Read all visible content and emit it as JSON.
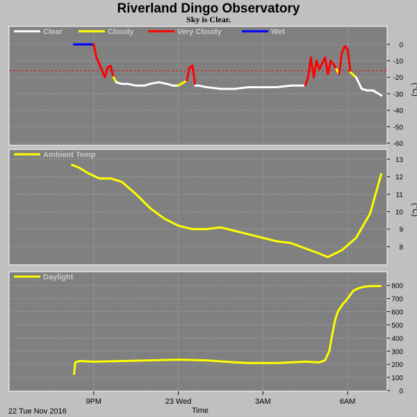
{
  "title": "Riverland Dingo Observatory",
  "subtitle": "Sky is Clear.",
  "footer": {
    "date": "22 Tue Nov 2016",
    "time_label": "Time"
  },
  "x_ticks": [
    "9PM",
    "23 Wed",
    "3AM",
    "6AM"
  ],
  "colors": {
    "clear": "#ffffff",
    "cloudy": "#ffff00",
    "very_cloudy": "#ff0000",
    "wet": "#0000ff",
    "threshold": "#ff0000",
    "panel": "#808080",
    "grid": "#b0b0b0"
  },
  "chart_data": [
    {
      "type": "line",
      "name": "sky",
      "legend": [
        "Clear",
        "Cloudy",
        "Very Cloudy",
        "Wet"
      ],
      "ylabel": "(°C)",
      "ylim": [
        -60,
        5
      ],
      "yticks": [
        0,
        -10,
        -20,
        -30,
        -40,
        -50,
        -60
      ],
      "threshold": -16,
      "x_hours": [
        20.3,
        20.5,
        21.0,
        21.1,
        21.2,
        21.3,
        21.4,
        21.5,
        21.6,
        21.7,
        21.8,
        22.0,
        22.2,
        22.5,
        22.8,
        23.0,
        23.3,
        23.6,
        23.8,
        24.0,
        24.3,
        24.4,
        24.5,
        24.6,
        24.7,
        25.0,
        25.5,
        26.0,
        26.5,
        27.0,
        27.5,
        28.0,
        28.5,
        28.6,
        28.7,
        28.8,
        28.9,
        29.0,
        29.2,
        29.3,
        29.4,
        29.5,
        29.6,
        29.7,
        29.8,
        29.9,
        30.0,
        30.1,
        30.3,
        30.5,
        30.7,
        30.9,
        31.0,
        31.2
      ],
      "values": [
        0,
        0,
        0,
        -8,
        -12,
        -16,
        -20,
        -14,
        -13,
        -20,
        -23,
        -24,
        -24,
        -25,
        -25,
        -24,
        -23,
        -24,
        -25,
        -25,
        -22,
        -14,
        -13,
        -25,
        -25,
        -26,
        -27,
        -27,
        -26,
        -26,
        -26,
        -25,
        -25,
        -20,
        -8,
        -20,
        -10,
        -15,
        -8,
        -18,
        -10,
        -12,
        -15,
        -18,
        -5,
        -1,
        -3,
        -17,
        -20,
        -27,
        -28,
        -28,
        -29,
        -31
      ],
      "states": [
        "wet",
        "wet",
        "wet",
        "very_cloudy",
        "very_cloudy",
        "very_cloudy",
        "very_cloudy",
        "very_cloudy",
        "very_cloudy",
        "very_cloudy",
        "cloudy",
        "clear",
        "clear",
        "clear",
        "clear",
        "clear",
        "clear",
        "clear",
        "clear",
        "clear",
        "cloudy",
        "very_cloudy",
        "very_cloudy",
        "very_cloudy",
        "clear",
        "clear",
        "clear",
        "clear",
        "clear",
        "clear",
        "clear",
        "clear",
        "clear",
        "very_cloudy",
        "very_cloudy",
        "very_cloudy",
        "very_cloudy",
        "very_cloudy",
        "very_cloudy",
        "very_cloudy",
        "very_cloudy",
        "very_cloudy",
        "very_cloudy",
        "cloudy",
        "very_cloudy",
        "very_cloudy",
        "very_cloudy",
        "very_cloudy",
        "cloudy",
        "clear",
        "clear",
        "clear",
        "clear",
        "clear"
      ]
    },
    {
      "type": "line",
      "name": "ambient",
      "legend": [
        "Ambient Temp"
      ],
      "ylabel": "(°C)",
      "ylim": [
        7,
        13.2
      ],
      "yticks": [
        8,
        9,
        10,
        11,
        12,
        13
      ],
      "x_hours": [
        20.2,
        20.5,
        20.8,
        21.2,
        21.6,
        22.0,
        22.5,
        23.0,
        23.5,
        24.0,
        24.5,
        25.0,
        25.5,
        26.0,
        26.5,
        27.0,
        27.5,
        28.0,
        28.5,
        29.0,
        29.3,
        29.8,
        30.3,
        30.8,
        31.2
      ],
      "values": [
        12.7,
        12.5,
        12.2,
        11.9,
        11.9,
        11.7,
        11.0,
        10.2,
        9.6,
        9.2,
        9.0,
        9.0,
        9.1,
        8.9,
        8.7,
        8.5,
        8.3,
        8.2,
        7.9,
        7.6,
        7.4,
        7.8,
        8.5,
        9.9,
        12.2
      ]
    },
    {
      "type": "line",
      "name": "daylight",
      "legend": [
        "Daylight"
      ],
      "ylabel": "",
      "ylim": [
        0,
        830
      ],
      "yticks": [
        0,
        100,
        200,
        300,
        400,
        500,
        600,
        700,
        800
      ],
      "x_hours": [
        20.3,
        20.35,
        20.5,
        21.0,
        22.0,
        23.0,
        24.0,
        25.0,
        26.0,
        26.5,
        27.0,
        27.5,
        28.0,
        28.5,
        29.0,
        29.2,
        29.35,
        29.45,
        29.55,
        29.65,
        29.8,
        30.0,
        30.2,
        30.4,
        30.6,
        30.8,
        31.0,
        31.2
      ],
      "values": [
        120,
        215,
        225,
        220,
        225,
        230,
        235,
        230,
        215,
        210,
        210,
        210,
        215,
        220,
        215,
        230,
        300,
        420,
        530,
        600,
        650,
        700,
        760,
        780,
        790,
        795,
        795,
        795
      ]
    }
  ]
}
